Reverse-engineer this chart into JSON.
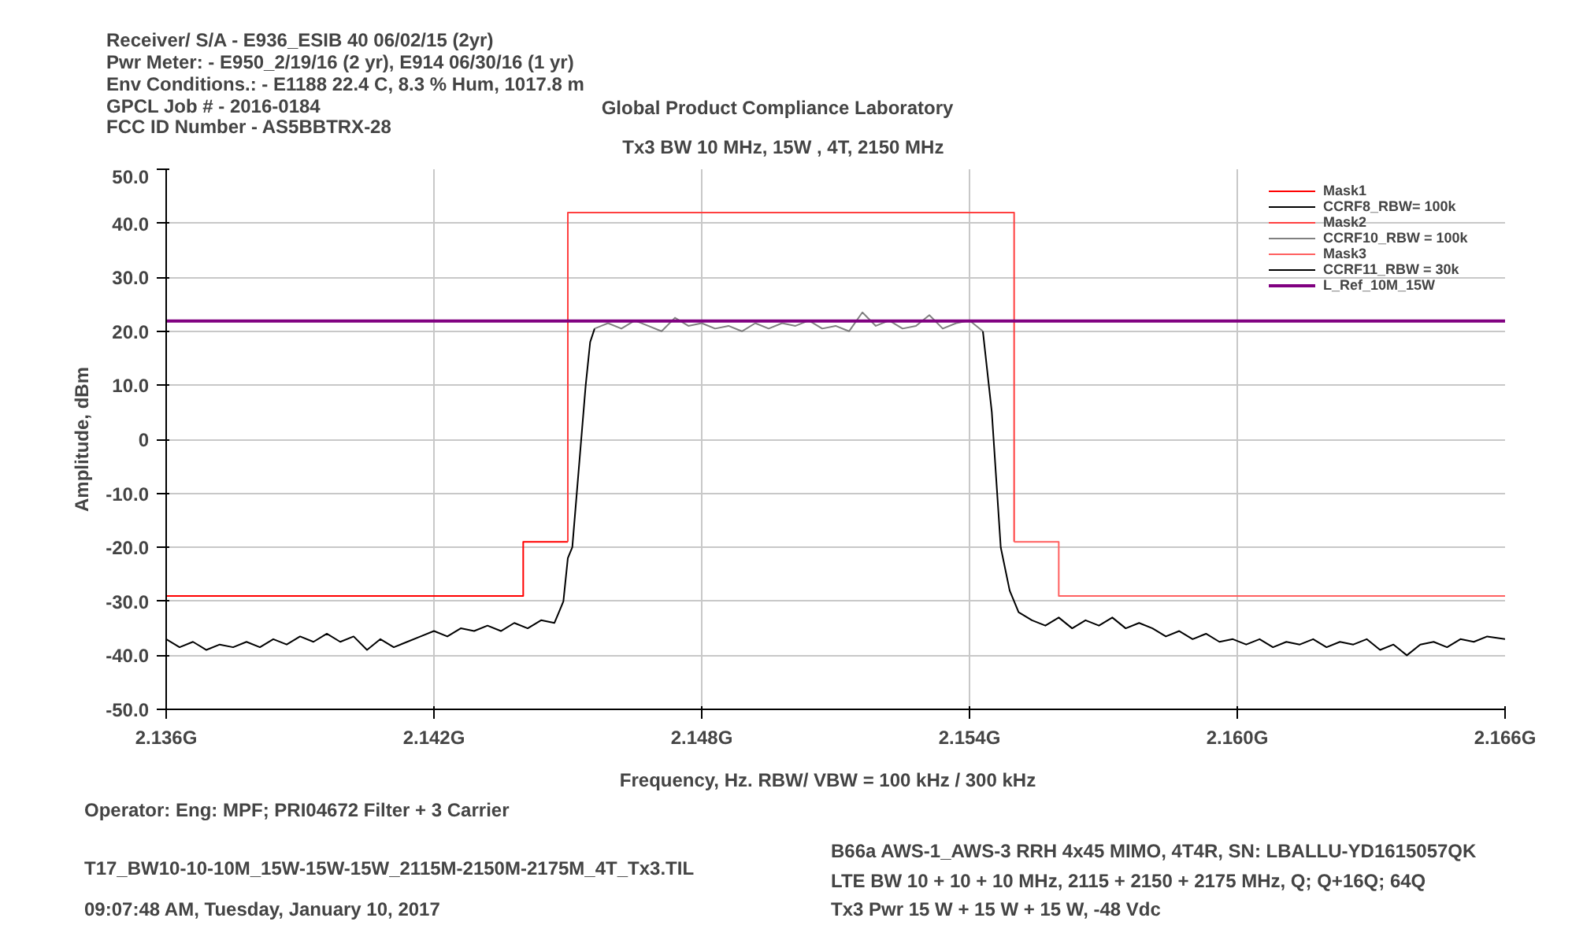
{
  "chart_data": {
    "type": "line",
    "title": "Tx3  BW 10  MHz, 15W , 4T, 2150 MHz",
    "subtitle": "Global Product Compliance Laboratory",
    "xlabel": "Frequency, Hz.   RBW/ VBW =  100 kHz / 300 kHz",
    "ylabel": "Amplitude, dBm",
    "annotations": [
      "Receiver/ S/A - E936_ESIB 40 06/02/15 (2yr)",
      "Pwr Meter: - E950_2/19/16 (2 yr), E914 06/30/16 (1 yr)",
      "Env Conditions.: - E1188 22.4 C, 8.3 % Hum,  1017.8 m",
      "GPCL Job #  - 2016-0184",
      "FCC ID Number - AS5BBTRX-28",
      "Operator:  Eng: MPF; PRI04672 Filter + 3 Carrier",
      "T17_BW10-10-10M_15W-15W-15W_2115M-2150M-2175M_4T_Tx3.TIL",
      "09:07:48 AM, Tuesday, January 10, 2017",
      "B66a  AWS-1_AWS-3 RRH 4x45 MIMO, 4T4R, SN:  LBALLU-YD1615057QK",
      "LTE BW 10 + 10 + 10 MHz,  2115 + 2150 + 2175 MHz, Q; Q+16Q;  64Q",
      "Tx3  Pwr  15 W + 15 W + 15 W, -48 Vdc"
    ],
    "xlim": [
      2.136,
      2.166
    ],
    "xticks": [
      {
        "value": 2.136,
        "label": "2.136G"
      },
      {
        "value": 2.142,
        "label": "2.142G"
      },
      {
        "value": 2.148,
        "label": "2.148G"
      },
      {
        "value": 2.154,
        "label": "2.154G"
      },
      {
        "value": 2.16,
        "label": "2.160G"
      },
      {
        "value": 2.166,
        "label": "2.166G"
      }
    ],
    "ylim": [
      -50,
      50
    ],
    "yticks": [
      {
        "value": -50,
        "label": "-50.0"
      },
      {
        "value": -40,
        "label": "-40.0"
      },
      {
        "value": -30,
        "label": "-30.0"
      },
      {
        "value": -20,
        "label": "-20.0"
      },
      {
        "value": -10,
        "label": "-10.0"
      },
      0,
      {
        "value": 10,
        "label": "10.0"
      },
      {
        "value": 20,
        "label": "20.0"
      },
      {
        "value": 30,
        "label": "30.0"
      },
      {
        "value": 40,
        "label": "40.0"
      },
      {
        "value": 50,
        "label": "50.0"
      }
    ],
    "grid": true,
    "legend": "top right",
    "line_style": "solid",
    "marker": "none",
    "series": [
      {
        "name": "Mask1",
        "color": "#ff0000",
        "type": "step",
        "x": [
          2.136,
          2.144,
          2.145
        ],
        "values": [
          -29,
          -19,
          -19
        ]
      },
      {
        "name": "CCRF8_RBW= 100k",
        "color": "#000000",
        "x": [
          2.136,
          2.1363,
          2.1366,
          2.1369,
          2.1372,
          2.1375,
          2.1378,
          2.1381,
          2.1384,
          2.1387,
          2.139,
          2.1393,
          2.1396,
          2.1399,
          2.1402,
          2.1405,
          2.1408,
          2.1411,
          2.1414,
          2.1417,
          2.142,
          2.1423,
          2.1426,
          2.1429,
          2.1432,
          2.1435,
          2.1438,
          2.1441,
          2.1444,
          2.1447,
          2.1448,
          2.1449,
          2.145,
          2.1451,
          2.1452,
          2.1453,
          2.1454,
          2.1455,
          2.1456
        ],
        "values": [
          -37,
          -38.5,
          -37.5,
          -39,
          -38,
          -38.5,
          -37.5,
          -38.5,
          -37,
          -38,
          -36.5,
          -37.5,
          -36,
          -37.5,
          -36.5,
          -39,
          -37,
          -38.5,
          -37.5,
          -36.5,
          -35.5,
          -36.5,
          -35,
          -35.5,
          -34.5,
          -35.5,
          -34,
          -35,
          -33.5,
          -34,
          -32,
          -30,
          -22,
          -20,
          -10,
          0,
          10,
          18,
          20.5
        ]
      },
      {
        "name": "Mask2",
        "color": "#ff4040",
        "type": "step",
        "x": [
          2.145,
          2.145,
          2.155,
          2.155
        ],
        "values": [
          -19,
          42,
          42,
          -19
        ]
      },
      {
        "name": "CCRF10_RBW = 100k",
        "color": "#808080",
        "x": [
          2.1456,
          2.1459,
          2.1462,
          2.1465,
          2.1468,
          2.1471,
          2.1474,
          2.1477,
          2.148,
          2.1483,
          2.1486,
          2.1489,
          2.1492,
          2.1495,
          2.1498,
          2.1501,
          2.1504,
          2.1507,
          2.151,
          2.1513,
          2.1516,
          2.1519,
          2.1522,
          2.1525,
          2.1528,
          2.1531,
          2.1534,
          2.1537,
          2.154,
          2.1543
        ],
        "values": [
          20.5,
          21.5,
          20.5,
          22,
          21,
          20,
          22.5,
          21,
          21.5,
          20.5,
          21,
          20,
          21.5,
          20.5,
          21.5,
          21,
          22,
          20.5,
          21,
          20,
          23.5,
          21,
          22,
          20.5,
          21,
          23,
          20.5,
          21.5,
          22,
          20
        ]
      },
      {
        "name": "Mask3",
        "color": "#ff6060",
        "type": "step",
        "x": [
          2.155,
          2.156,
          2.166
        ],
        "values": [
          -19,
          -29,
          -29
        ]
      },
      {
        "name": "CCRF11_RBW = 30k",
        "color": "#000000",
        "x": [
          2.1543,
          2.1545,
          2.1547,
          2.1549,
          2.1551,
          2.1554,
          2.1557,
          2.156,
          2.1563,
          2.1566,
          2.1569,
          2.1572,
          2.1575,
          2.1578,
          2.1581,
          2.1584,
          2.1587,
          2.159,
          2.1593,
          2.1596,
          2.1599,
          2.1602,
          2.1605,
          2.1608,
          2.1611,
          2.1614,
          2.1617,
          2.162,
          2.1623,
          2.1626,
          2.1629,
          2.1632,
          2.1635,
          2.1638,
          2.1641,
          2.1644,
          2.1647,
          2.165,
          2.1653,
          2.1656,
          2.166
        ],
        "values": [
          20,
          5,
          -20,
          -28,
          -32,
          -33.5,
          -34.5,
          -33,
          -35,
          -33.5,
          -34.5,
          -33,
          -35,
          -34,
          -35,
          -36.5,
          -35.5,
          -37,
          -36,
          -37.5,
          -37,
          -38,
          -37,
          -38.5,
          -37.5,
          -38,
          -37,
          -38.5,
          -37.5,
          -38,
          -37,
          -39,
          -38,
          -40,
          -38,
          -37.5,
          -38.5,
          -37,
          -37.5,
          -36.5,
          -37
        ]
      },
      {
        "name": "L_Ref_10M_15W",
        "color": "#800080",
        "x": [
          2.136,
          2.166
        ],
        "values": [
          21.9,
          21.9
        ]
      }
    ]
  }
}
